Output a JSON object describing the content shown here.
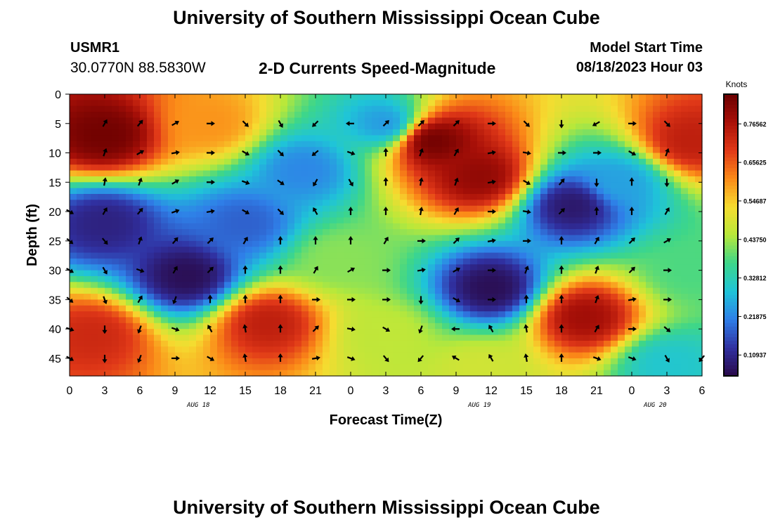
{
  "page": {
    "title": "University of Southern Mississippi Ocean Cube",
    "bottom_title": "University of Southern Mississippi Ocean Cube",
    "station_id": "USMR1",
    "station_coords": "30.0770N  88.5830W",
    "chart_title": "2-D Currents Speed-Magnitude",
    "model_start_label": "Model Start Time",
    "model_start_value": "08/18/2023 Hour 03"
  },
  "chart_data": {
    "type": "heatmap",
    "xlabel": "Forecast Time(Z)",
    "ylabel": "Depth (ft)",
    "colorbar_label": "Knots",
    "x_tick_labels": [
      "0",
      "3",
      "6",
      "9",
      "12",
      "15",
      "18",
      "21",
      "0",
      "3",
      "6",
      "9",
      "12",
      "15",
      "18",
      "21",
      "0",
      "3",
      "6"
    ],
    "date_labels": [
      {
        "text": "AUG 18",
        "hour": 11
      },
      {
        "text": "AUG 19",
        "hour": 35
      },
      {
        "text": "AUG 20",
        "hour": 50
      }
    ],
    "y_ticks": [
      0,
      5,
      10,
      15,
      20,
      25,
      30,
      35,
      40,
      45
    ],
    "y_tick_labels": [
      "0",
      "5",
      "10",
      "15",
      "20",
      "25",
      "30",
      "35",
      "40",
      "45"
    ],
    "xlim_hours": [
      0,
      54
    ],
    "ylim_depth_ft": [
      0,
      48
    ],
    "colorbar_ticks": [
      0.76562,
      0.65625,
      0.54687,
      0.4375,
      0.32812,
      0.21875,
      0.10937
    ],
    "colorbar_tick_labels": [
      "0.76562",
      "0.65625",
      "0.54687",
      "0.43750",
      "0.32812",
      "0.21875",
      "0.10937"
    ],
    "speed_range_knots": [
      0.05,
      0.85
    ],
    "colormap": [
      "#2a0a4a",
      "#3030a0",
      "#2f7fe8",
      "#1fc4d8",
      "#3dd68a",
      "#b8e83a",
      "#f6dc30",
      "#fb8a18",
      "#e03818",
      "#a81008",
      "#6a0000"
    ],
    "speed_hotspots": [
      {
        "hour": 3,
        "depth": 7,
        "speed": 0.84
      },
      {
        "hour": 12,
        "depth": 5,
        "speed": 0.6
      },
      {
        "hour": 2,
        "depth": 41,
        "speed": 0.72
      },
      {
        "hour": 17,
        "depth": 39,
        "speed": 0.74
      },
      {
        "hour": 31,
        "depth": 8,
        "speed": 0.84
      },
      {
        "hour": 35,
        "depth": 14,
        "speed": 0.8
      },
      {
        "hour": 44,
        "depth": 38,
        "speed": 0.78
      },
      {
        "hour": 53,
        "depth": 8,
        "speed": 0.74
      },
      {
        "hour": 35,
        "depth": 47,
        "speed": 0.48
      },
      {
        "hour": 3,
        "depth": 22,
        "speed": 0.1
      },
      {
        "hour": 10,
        "depth": 31,
        "speed": 0.06
      },
      {
        "hour": 15,
        "depth": 22,
        "speed": 0.18
      },
      {
        "hour": 20,
        "depth": 13,
        "speed": 0.22
      },
      {
        "hour": 27,
        "depth": 5,
        "speed": 0.24
      },
      {
        "hour": 36,
        "depth": 33,
        "speed": 0.06
      },
      {
        "hour": 43,
        "depth": 19,
        "speed": 0.08
      },
      {
        "hour": 47,
        "depth": 15,
        "speed": 0.25
      },
      {
        "hour": 51,
        "depth": 46,
        "speed": 0.3
      },
      {
        "hour": 23,
        "depth": 28,
        "speed": 0.42
      },
      {
        "hour": 27,
        "depth": 41,
        "speed": 0.46
      },
      {
        "hour": 53,
        "depth": 30,
        "speed": 0.38
      }
    ],
    "vector_hours": [
      0,
      3,
      6,
      9,
      12,
      15,
      18,
      21,
      24,
      27,
      30,
      33,
      36,
      39,
      42,
      45,
      48,
      51,
      54
    ],
    "vector_depths": [
      5,
      10,
      15,
      20,
      25,
      30,
      35,
      40,
      45
    ],
    "vector_directions_deg": [
      [
        null,
        30,
        40,
        60,
        90,
        135,
        150,
        225,
        270,
        45,
        45,
        45,
        90,
        135,
        180,
        240,
        90,
        135,
        null
      ],
      [
        null,
        20,
        60,
        80,
        90,
        120,
        135,
        230,
        110,
        0,
        20,
        30,
        80,
        100,
        90,
        90,
        120,
        20,
        null
      ],
      [
        null,
        10,
        20,
        60,
        90,
        110,
        125,
        210,
        150,
        0,
        10,
        20,
        80,
        120,
        40,
        180,
        0,
        180,
        null
      ],
      [
        120,
        30,
        40,
        70,
        80,
        120,
        135,
        330,
        0,
        0,
        10,
        30,
        90,
        100,
        45,
        0,
        0,
        30,
        null
      ],
      [
        130,
        140,
        20,
        40,
        45,
        30,
        0,
        0,
        0,
        30,
        90,
        45,
        80,
        90,
        0,
        30,
        45,
        60,
        null
      ],
      [
        120,
        150,
        110,
        30,
        45,
        0,
        0,
        30,
        60,
        90,
        80,
        60,
        90,
        20,
        0,
        20,
        45,
        90,
        null
      ],
      [
        130,
        160,
        30,
        200,
        0,
        0,
        0,
        90,
        90,
        90,
        180,
        120,
        90,
        0,
        0,
        20,
        80,
        90,
        null
      ],
      [
        110,
        180,
        200,
        110,
        330,
        350,
        0,
        45,
        100,
        120,
        200,
        270,
        330,
        350,
        0,
        30,
        90,
        130,
        null
      ],
      [
        120,
        180,
        200,
        90,
        120,
        350,
        0,
        80,
        110,
        140,
        220,
        300,
        330,
        350,
        0,
        110,
        110,
        150,
        220
      ]
    ]
  }
}
